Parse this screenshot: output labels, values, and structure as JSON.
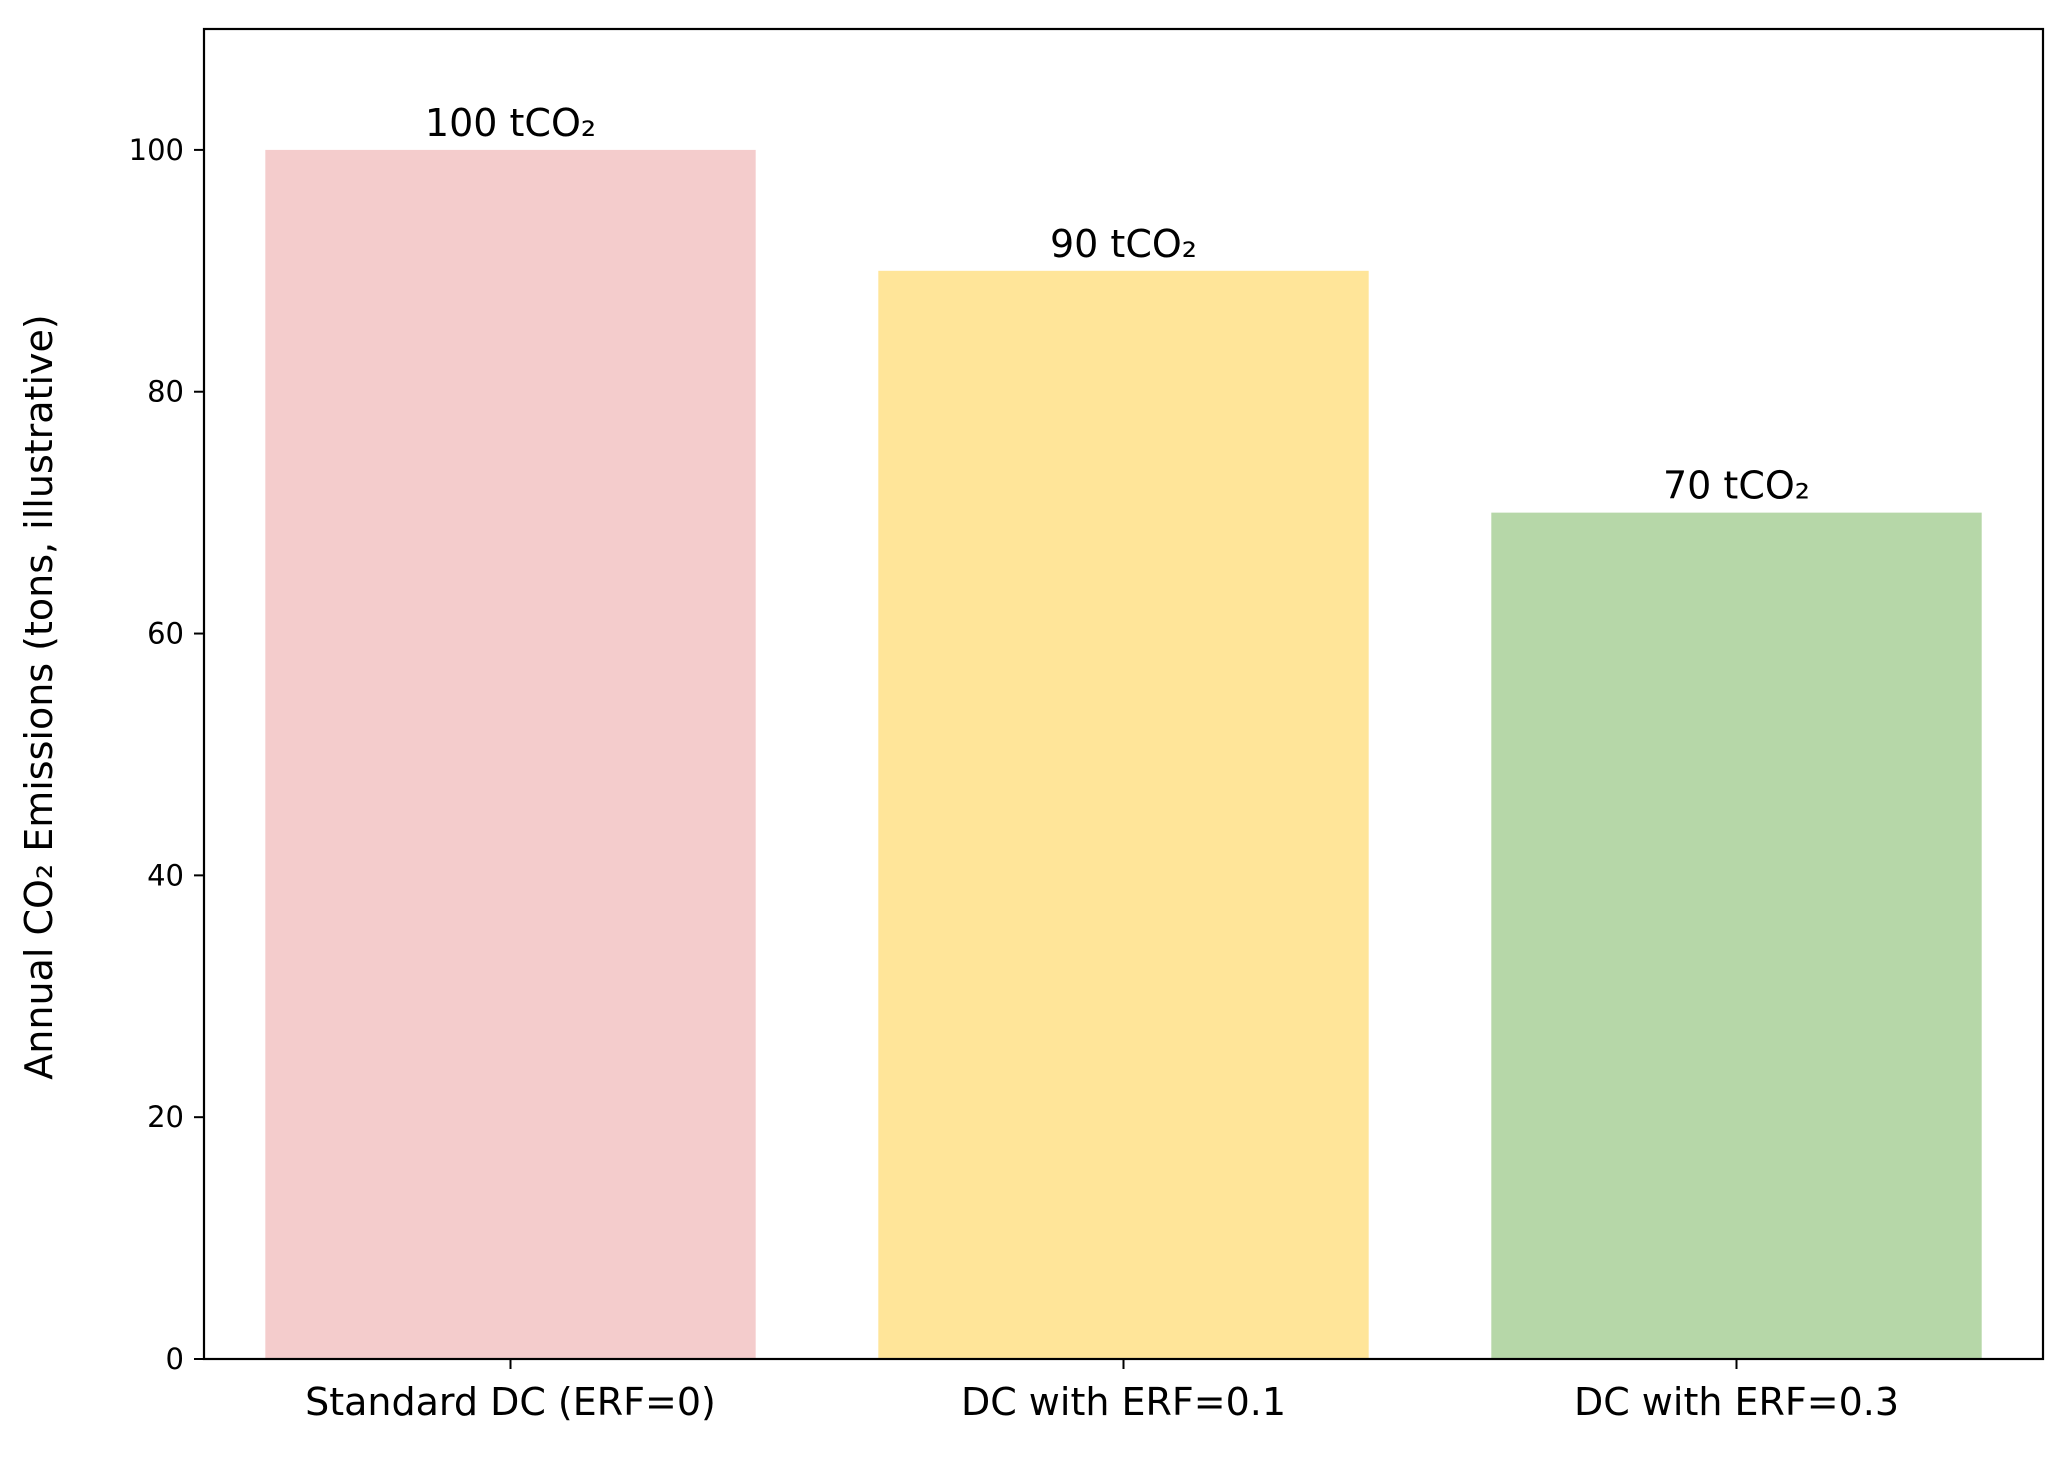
{
  "chart_data": {
    "type": "bar",
    "title": "",
    "xlabel": "",
    "ylabel": "Annual CO₂ Emissions (tons, illustrative)",
    "categories": [
      "Standard DC (ERF=0)",
      "DC with ERF=0.1",
      "DC with ERF=0.3"
    ],
    "values": [
      100,
      90,
      70
    ],
    "data_labels": [
      "100 tCO₂",
      "90 tCO₂",
      "70 tCO₂"
    ],
    "colors": [
      "#f4cccc",
      "#ffe599",
      "#b6d7a8"
    ],
    "ylim": [
      0,
      110
    ],
    "yticks": [
      0,
      20,
      40,
      60,
      80,
      100
    ],
    "grid": false,
    "legend": "none"
  }
}
